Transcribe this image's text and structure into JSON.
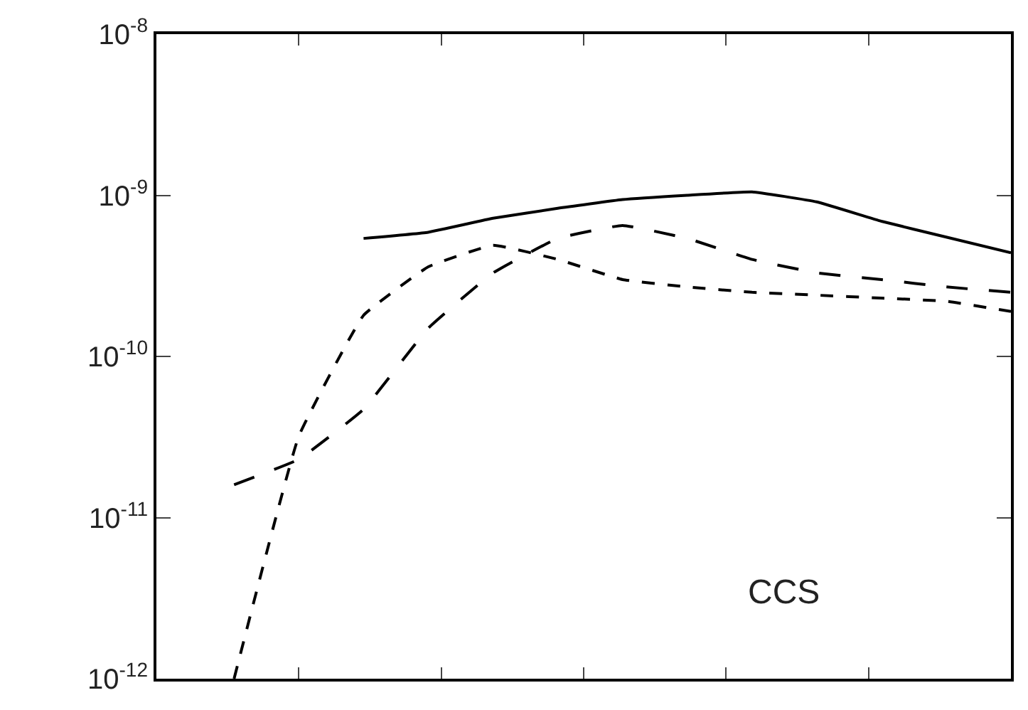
{
  "chart_data": {
    "type": "line",
    "categories": [
      null,
      null,
      null,
      null,
      null,
      null,
      null,
      null,
      null,
      null,
      null,
      null,
      null
    ],
    "series": [
      {
        "color": "#000000",
        "line_style": "solid",
        "values": [
          null,
          null,
          5.4e-10,
          5.9e-10,
          7.2e-10,
          8.3e-10,
          9.4e-10,
          1e-09,
          1.05e-09,
          9.1e-10,
          6.9e-10,
          5.5e-10,
          4.4e-10
        ]
      },
      {
        "color": "#000000",
        "line_style": "dashed",
        "values": [
          1.6e-11,
          2.3e-11,
          4.7e-11,
          1.5e-10,
          3.3e-10,
          5.4e-10,
          6.5e-10,
          5.4e-10,
          4e-10,
          3.3e-10,
          3e-10,
          2.7e-10,
          2.5e-10
        ]
      },
      {
        "color": "#000000",
        "line_style": "dashed",
        "values": [
          1e-12,
          3.2e-11,
          1.8e-10,
          3.6e-10,
          4.9e-10,
          4e-10,
          3e-10,
          2.7e-10,
          2.5e-10,
          2.4e-10,
          2.3e-10,
          2.2e-10,
          1.9e-10
        ]
      }
    ],
    "log": "y",
    "ylim": [
      1e-12,
      1e-08
    ],
    "yticks": [
      {
        "value": 1e-12,
        "label": "10$^{-12}$"
      },
      {
        "value": 1e-11,
        "label": "10$^{-11}$"
      },
      {
        "value": 1e-10,
        "label": "10$^{-10}$"
      },
      {
        "value": 1e-09,
        "label": "10$^{-9}$"
      },
      {
        "value": 1e-08,
        "label": "10$^{-8}$"
      }
    ],
    "tick_labels": "y",
    "marker": "none",
    "annotations": [
      "CCS"
    ]
  }
}
